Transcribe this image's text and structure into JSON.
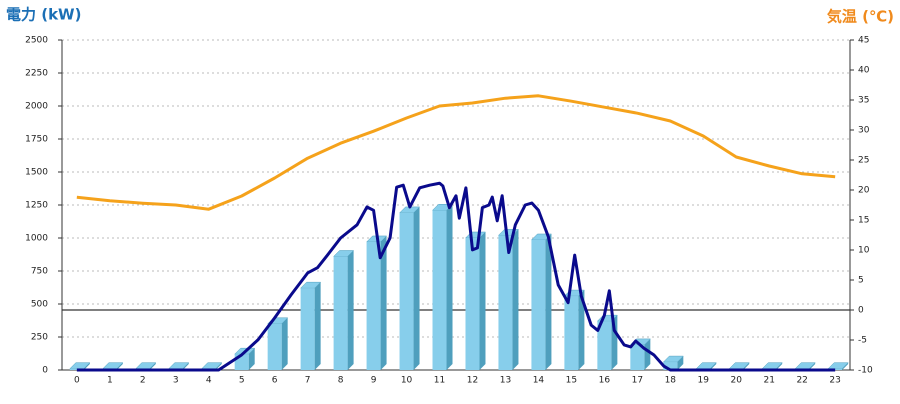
{
  "chart_data": {
    "type": "combo",
    "y_label": "電力 (kW)",
    "y2_label": "気温 (℃)",
    "categories": [
      "0",
      "1",
      "2",
      "3",
      "4",
      "5",
      "6",
      "7",
      "8",
      "9",
      "10",
      "11",
      "12",
      "13",
      "14",
      "15",
      "16",
      "17",
      "18",
      "19",
      "20",
      "21",
      "22",
      "23"
    ],
    "xlim": [
      -0.45,
      23.45
    ],
    "ylim": [
      0,
      2500
    ],
    "yticks": [
      0,
      250,
      500,
      750,
      1000,
      1250,
      1500,
      1750,
      2000,
      2250,
      2500
    ],
    "y2lim": [
      -10,
      45
    ],
    "y2ticks": [
      -10,
      -5,
      0,
      5,
      10,
      15,
      20,
      25,
      30,
      35,
      40,
      45
    ],
    "grid": true,
    "y2_zero_line": true,
    "series": [
      {
        "type": "bar",
        "color": "#87ceeb",
        "side_color": "#4f9fbd",
        "values": [
          10,
          10,
          10,
          10,
          10,
          120,
          350,
          620,
          860,
          970,
          1190,
          1210,
          1000,
          1020,
          985,
          560,
          370,
          190,
          60,
          10,
          10,
          10,
          10,
          10
        ]
      },
      {
        "type": "line",
        "color": "#0a0a8c",
        "x": [
          0,
          4.3,
          5,
          5.5,
          6,
          6.5,
          7,
          7.3,
          7.6,
          8,
          8.5,
          8.8,
          9,
          9.2,
          9.5,
          9.7,
          9.9,
          10.1,
          10.4,
          10.7,
          11,
          11.1,
          11.3,
          11.5,
          11.6,
          11.8,
          12,
          12.15,
          12.3,
          12.5,
          12.6,
          12.75,
          12.9,
          13.1,
          13.3,
          13.6,
          13.8,
          14,
          14.3,
          14.6,
          14.9,
          15.1,
          15.3,
          15.6,
          15.8,
          16,
          16.15,
          16.3,
          16.6,
          16.8,
          16.95,
          17.2,
          17.5,
          17.8,
          18,
          23
        ],
        "values": [
          0,
          0,
          115,
          230,
          395,
          570,
          735,
          775,
          870,
          1000,
          1100,
          1235,
          1210,
          850,
          1000,
          1385,
          1400,
          1235,
          1380,
          1400,
          1415,
          1395,
          1230,
          1320,
          1150,
          1380,
          910,
          925,
          1230,
          1250,
          1310,
          1130,
          1320,
          890,
          1100,
          1250,
          1265,
          1210,
          1010,
          645,
          510,
          870,
          560,
          340,
          300,
          415,
          600,
          300,
          190,
          175,
          220,
          165,
          115,
          30,
          0,
          0
        ]
      },
      {
        "type": "line",
        "axis": "y2",
        "color": "#f5a21b",
        "values": [
          18.8,
          18.2,
          17.8,
          17.5,
          16.8,
          19,
          22,
          25.3,
          27.8,
          29.8,
          32,
          34,
          34.5,
          35.3,
          35.7,
          34.8,
          33.8,
          32.8,
          31.5,
          29,
          25.5,
          24,
          22.7,
          22.2
        ]
      }
    ]
  }
}
